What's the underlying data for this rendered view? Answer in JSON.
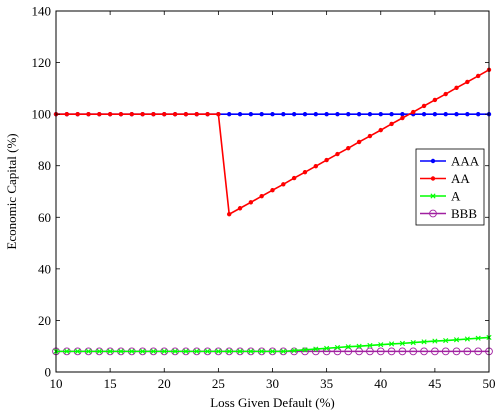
{
  "chart_data": {
    "type": "line",
    "xlabel": "Loss Given Default (%)",
    "ylabel": "Economic Capital (%)",
    "xlim": [
      10,
      50
    ],
    "ylim": [
      0,
      140
    ],
    "xticks": [
      10,
      15,
      20,
      25,
      30,
      35,
      40,
      45,
      50
    ],
    "yticks": [
      0,
      20,
      40,
      60,
      80,
      100,
      120,
      140
    ],
    "grid": false,
    "legend_position": "right",
    "series": [
      {
        "name": "AAA",
        "color": "#0000ff",
        "marker": "filled-circle",
        "x": [
          10,
          11,
          12,
          13,
          14,
          15,
          16,
          17,
          18,
          19,
          20,
          21,
          22,
          23,
          24,
          25,
          26,
          27,
          28,
          29,
          30,
          31,
          32,
          33,
          34,
          35,
          36,
          37,
          38,
          39,
          40,
          41,
          42,
          43,
          44,
          45,
          46,
          47,
          48,
          49,
          50
        ],
        "y": [
          100,
          100,
          100,
          100,
          100,
          100,
          100,
          100,
          100,
          100,
          100,
          100,
          100,
          100,
          100,
          100,
          100,
          100,
          100,
          100,
          100,
          100,
          100,
          100,
          100,
          100,
          100,
          100,
          100,
          100,
          100,
          100,
          100,
          100,
          100,
          100,
          100,
          100,
          100,
          100,
          100
        ]
      },
      {
        "name": "AA",
        "color": "#ff0000",
        "marker": "filled-circle",
        "x": [
          10,
          11,
          12,
          13,
          14,
          15,
          16,
          17,
          18,
          19,
          20,
          21,
          22,
          23,
          24,
          25,
          26,
          27,
          28,
          29,
          30,
          31,
          32,
          33,
          34,
          35,
          36,
          37,
          38,
          39,
          40,
          41,
          42,
          43,
          44,
          45,
          46,
          47,
          48,
          49,
          50
        ],
        "y": [
          100,
          100,
          100,
          100,
          100,
          100,
          100,
          100,
          100,
          100,
          100,
          100,
          100,
          100,
          100,
          100,
          61.2,
          63.5,
          65.8,
          68.2,
          70.5,
          72.8,
          75.2,
          77.5,
          79.8,
          82.2,
          84.5,
          86.8,
          89.2,
          91.5,
          93.8,
          96.2,
          98.5,
          100.8,
          103.2,
          105.5,
          107.8,
          110.2,
          112.5,
          114.8,
          117.2
        ]
      },
      {
        "name": "A",
        "color": "#00ff00",
        "marker": "x",
        "x": [
          10,
          11,
          12,
          13,
          14,
          15,
          16,
          17,
          18,
          19,
          20,
          21,
          22,
          23,
          24,
          25,
          26,
          27,
          28,
          29,
          30,
          31,
          32,
          33,
          34,
          35,
          36,
          37,
          38,
          39,
          40,
          41,
          42,
          43,
          44,
          45,
          46,
          47,
          48,
          49,
          50
        ],
        "y": [
          8,
          8,
          8,
          8,
          8,
          8,
          8,
          8,
          8,
          8,
          8,
          8,
          8,
          8,
          8,
          8,
          8,
          8,
          8,
          8,
          8,
          8,
          8.3,
          8.6,
          8.9,
          9.2,
          9.5,
          9.8,
          10,
          10.3,
          10.6,
          10.9,
          11.1,
          11.4,
          11.7,
          12,
          12.2,
          12.5,
          12.8,
          13.1,
          13.4
        ]
      },
      {
        "name": "BBB",
        "color": "#a020a0",
        "marker": "open-circle",
        "x": [
          10,
          11,
          12,
          13,
          14,
          15,
          16,
          17,
          18,
          19,
          20,
          21,
          22,
          23,
          24,
          25,
          26,
          27,
          28,
          29,
          30,
          31,
          32,
          33,
          34,
          35,
          36,
          37,
          38,
          39,
          40,
          41,
          42,
          43,
          44,
          45,
          46,
          47,
          48,
          49,
          50
        ],
        "y": [
          8,
          8,
          8,
          8,
          8,
          8,
          8,
          8,
          8,
          8,
          8,
          8,
          8,
          8,
          8,
          8,
          8,
          8,
          8,
          8,
          8,
          8,
          8,
          8,
          8,
          8,
          8,
          8,
          8,
          8,
          8,
          8,
          8,
          8,
          8,
          8,
          8,
          8,
          8,
          8,
          8
        ]
      }
    ]
  }
}
